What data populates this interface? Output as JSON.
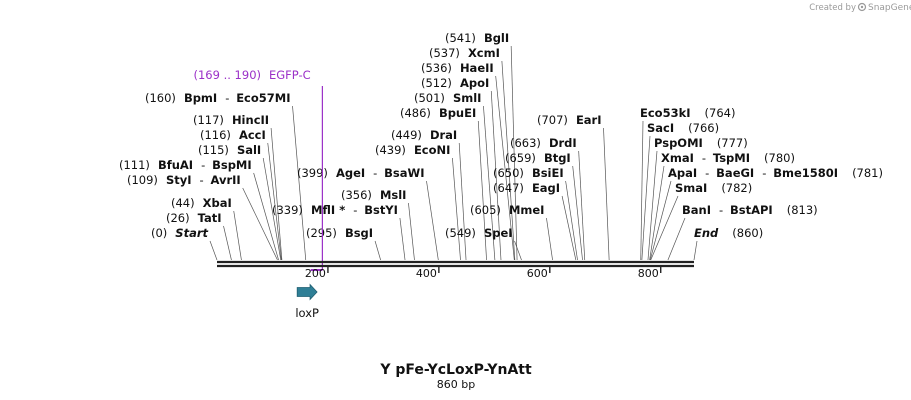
{
  "credit": {
    "prefix": "Created by",
    "brand": "SnapGene"
  },
  "map": {
    "name": "Y pFe-YcLoxP-YnAtt",
    "length_label": "860 bp",
    "length_bp": 860,
    "ticks": [
      "200",
      "400",
      "600",
      "800"
    ]
  },
  "features": [
    {
      "name": "loxP",
      "start": 150,
      "end": 184,
      "direction": "forward",
      "color": "#2f7f96"
    }
  ],
  "primers": [
    {
      "range": "(169 .. 190)",
      "name": "EGFP-C",
      "start": 169,
      "end": 190,
      "color": "#9b30c8"
    }
  ],
  "sites": [
    {
      "pos": 0,
      "pos_text": "(0)",
      "names": [
        "Start"
      ],
      "italic": true
    },
    {
      "pos": 26,
      "pos_text": "(26)",
      "names": [
        "TatI"
      ]
    },
    {
      "pos": 44,
      "pos_text": "(44)",
      "names": [
        "XbaI"
      ]
    },
    {
      "pos": 109,
      "pos_text": "(109)",
      "names": [
        "StyI",
        "AvrII"
      ]
    },
    {
      "pos": 111,
      "pos_text": "(111)",
      "names": [
        "BfuAI",
        "BspMI"
      ]
    },
    {
      "pos": 115,
      "pos_text": "(115)",
      "names": [
        "SalI"
      ]
    },
    {
      "pos": 116,
      "pos_text": "(116)",
      "names": [
        "AccI"
      ]
    },
    {
      "pos": 117,
      "pos_text": "(117)",
      "names": [
        "HincII"
      ]
    },
    {
      "pos": 160,
      "pos_text": "(160)",
      "names": [
        "BpmI",
        "Eco57MI"
      ]
    },
    {
      "pos": 295,
      "pos_text": "(295)",
      "names": [
        "BsgI"
      ]
    },
    {
      "pos": 339,
      "pos_text": "(339)",
      "names": [
        "MflI *",
        "BstYI"
      ]
    },
    {
      "pos": 356,
      "pos_text": "(356)",
      "names": [
        "MslI"
      ]
    },
    {
      "pos": 399,
      "pos_text": "(399)",
      "names": [
        "AgeI",
        "BsaWI"
      ]
    },
    {
      "pos": 439,
      "pos_text": "(439)",
      "names": [
        "EcoNI"
      ]
    },
    {
      "pos": 449,
      "pos_text": "(449)",
      "names": [
        "DraI"
      ]
    },
    {
      "pos": 486,
      "pos_text": "(486)",
      "names": [
        "BpuEI"
      ]
    },
    {
      "pos": 501,
      "pos_text": "(501)",
      "names": [
        "SmlI"
      ]
    },
    {
      "pos": 512,
      "pos_text": "(512)",
      "names": [
        "ApoI"
      ]
    },
    {
      "pos": 536,
      "pos_text": "(536)",
      "names": [
        "HaeII"
      ]
    },
    {
      "pos": 537,
      "pos_text": "(537)",
      "names": [
        "XcmI"
      ]
    },
    {
      "pos": 541,
      "pos_text": "(541)",
      "names": [
        "BglI"
      ]
    },
    {
      "pos": 549,
      "pos_text": "(549)",
      "names": [
        "SpeI"
      ]
    },
    {
      "pos": 605,
      "pos_text": "(605)",
      "names": [
        "MmeI"
      ]
    },
    {
      "pos": 647,
      "pos_text": "(647)",
      "names": [
        "EagI"
      ]
    },
    {
      "pos": 650,
      "pos_text": "(650)",
      "names": [
        "BsiEI"
      ]
    },
    {
      "pos": 659,
      "pos_text": "(659)",
      "names": [
        "BtgI"
      ]
    },
    {
      "pos": 663,
      "pos_text": "(663)",
      "names": [
        "DrdI"
      ]
    },
    {
      "pos": 707,
      "pos_text": "(707)",
      "names": [
        "EarI"
      ]
    },
    {
      "pos": 764,
      "pos_text": "(764)",
      "names": [
        "Eco53kI"
      ]
    },
    {
      "pos": 766,
      "pos_text": "(766)",
      "names": [
        "SacI"
      ]
    },
    {
      "pos": 777,
      "pos_text": "(777)",
      "names": [
        "PspOMI"
      ]
    },
    {
      "pos": 780,
      "pos_text": "(780)",
      "names": [
        "XmaI",
        "TspMI"
      ]
    },
    {
      "pos": 781,
      "pos_text": "(781)",
      "names": [
        "ApaI",
        "BaeGI",
        "Bme1580I"
      ]
    },
    {
      "pos": 782,
      "pos_text": "(782)",
      "names": [
        "SmaI"
      ]
    },
    {
      "pos": 813,
      "pos_text": "(813)",
      "names": [
        "BanI",
        "BstAPI"
      ]
    },
    {
      "pos": 860,
      "pos_text": "(860)",
      "names": [
        "End"
      ],
      "italic": true
    }
  ]
}
